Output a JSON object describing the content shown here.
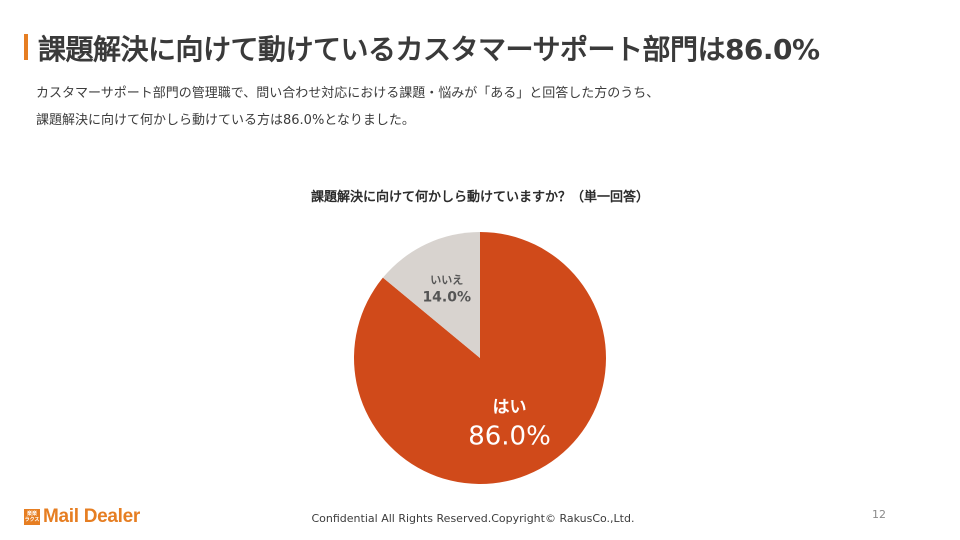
{
  "slide": {
    "title": "課題解決に向けて動けているカスタマーサポート部門は86.0%",
    "description_lines": [
      "カスタマーサポート部門の管理職で、問い合わせ対応における課題・悩みが「ある」と回答した方のうち、",
      "課題解決に向けて何かしら動けている方は86.0%となりました。"
    ],
    "footer": "Confidential All Rights Reserved.Copyright© RakusCo.,Ltd.",
    "page_number": "12",
    "logo_mark_text": "楽楽 ラクス",
    "logo_text": "Mail Dealer",
    "accent_color": "#e67e22"
  },
  "chart_data": {
    "type": "pie",
    "title": "課題解決に向けて何かしら動けていますか？（単一回答）",
    "slices": [
      {
        "label": "はい",
        "value": 86.0,
        "value_label": "86.0%",
        "color": "#d04a1a",
        "text_color": "#ffffff"
      },
      {
        "label": "いいえ",
        "value": 14.0,
        "value_label": "14.0%",
        "color": "#d8d3cf",
        "text_color": "#555555"
      }
    ]
  }
}
